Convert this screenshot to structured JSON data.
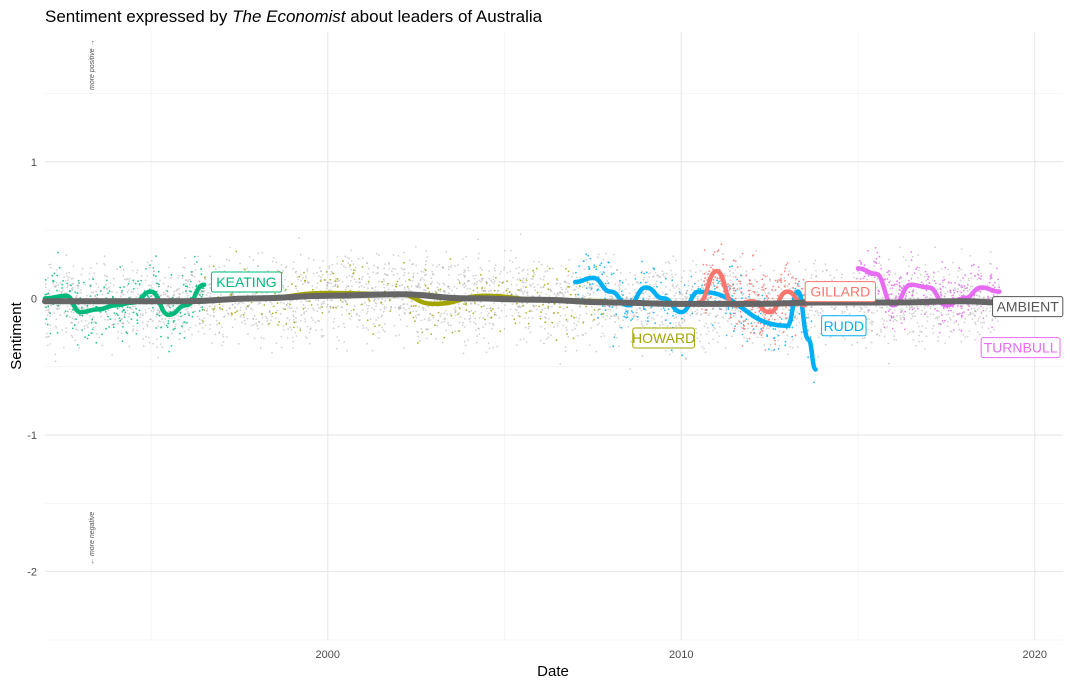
{
  "chart_data": {
    "type": "scatter",
    "title_prefix": "Sentiment expressed by ",
    "title_emphasis": "The Economist",
    "title_suffix": " about leaders of Australia",
    "xlabel": "Date",
    "ylabel": "Sentiment",
    "xlim": [
      1992.0,
      2020.8
    ],
    "ylim": [
      -2.5,
      1.95
    ],
    "x_ticks": [
      2000,
      2010,
      2020
    ],
    "y_ticks": [
      -2,
      -1,
      0,
      1
    ],
    "grid": true,
    "note_positive": "more positive →",
    "note_negative": "← more negative",
    "ambient": {
      "name": "AMBIENT",
      "color": "#666666",
      "range": [
        1992.0,
        2019.0
      ],
      "x": [
        1992.0,
        1994.0,
        1996.0,
        1998.0,
        2000.0,
        2002.0,
        2004.0,
        2006.0,
        2008.0,
        2010.0,
        2012.0,
        2014.0,
        2016.0,
        2018.0,
        2019.0
      ],
      "y": [
        -0.02,
        -0.02,
        -0.02,
        0.0,
        0.02,
        0.03,
        0.0,
        -0.01,
        -0.03,
        -0.04,
        -0.04,
        -0.03,
        -0.03,
        -0.02,
        -0.03
      ]
    },
    "series": [
      {
        "name": "KEATING",
        "color": "#00BA7D",
        "range": [
          1992.0,
          1996.5
        ],
        "x": [
          1992.0,
          1992.6,
          1993.0,
          1993.5,
          1994.0,
          1994.5,
          1995.0,
          1995.5,
          1996.0,
          1996.5
        ],
        "y": [
          0.0,
          0.02,
          -0.1,
          -0.08,
          -0.05,
          -0.03,
          0.05,
          -0.12,
          -0.05,
          0.1
        ],
        "label_x": 1997.7,
        "label_y": 0.12
      },
      {
        "name": "HOWARD",
        "color": "#A3A500",
        "range": [
          1996.3,
          2007.9
        ],
        "x": [
          1996.3,
          1998.0,
          2000.0,
          2002.0,
          2003.0,
          2004.5,
          2006.0,
          2007.9
        ],
        "y": [
          -0.02,
          0.0,
          0.04,
          0.03,
          -0.04,
          0.02,
          -0.01,
          -0.02
        ],
        "label_x": 2009.5,
        "label_y": -0.29
      },
      {
        "name": "RUDD",
        "color": "#00B0F6",
        "range": [
          2007.0,
          2013.8
        ],
        "x": [
          2007.0,
          2007.5,
          2008.0,
          2008.5,
          2009.0,
          2009.5,
          2010.0,
          2010.5,
          2013.0,
          2013.3,
          2013.6,
          2013.8
        ],
        "y": [
          0.12,
          0.15,
          0.05,
          -0.05,
          0.08,
          0.0,
          -0.1,
          0.05,
          -0.2,
          0.05,
          -0.3,
          -0.52
        ],
        "label_x": 2014.6,
        "label_y": -0.2
      },
      {
        "name": "GILLARD",
        "color": "#F8766D",
        "range": [
          2010.5,
          2013.5
        ],
        "x": [
          2010.5,
          2011.0,
          2011.5,
          2012.0,
          2012.5,
          2013.0,
          2013.5
        ],
        "y": [
          -0.03,
          0.2,
          -0.05,
          -0.02,
          -0.1,
          0.05,
          -0.05
        ],
        "label_x": 2014.5,
        "label_y": 0.05
      },
      {
        "name": "TURNBULL",
        "color": "#E76BF3",
        "range": [
          2015.0,
          2019.0
        ],
        "x": [
          2015.0,
          2015.5,
          2016.0,
          2016.5,
          2017.0,
          2017.5,
          2018.0,
          2018.5,
          2019.0
        ],
        "y": [
          0.22,
          0.18,
          -0.05,
          0.1,
          0.08,
          -0.05,
          0.0,
          0.08,
          0.05
        ],
        "label_x": 2019.6,
        "label_y": -0.36
      }
    ]
  }
}
